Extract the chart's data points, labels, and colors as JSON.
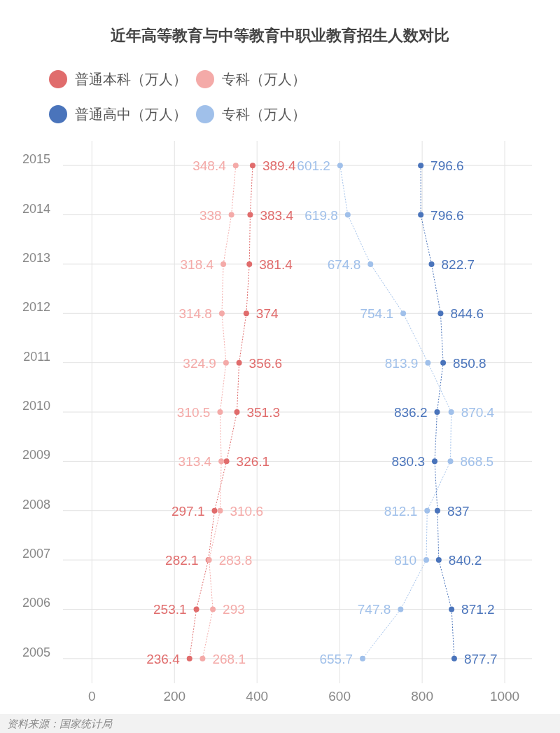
{
  "chart_data": {
    "type": "line",
    "orientation": "horizontal",
    "title": "近年高等教育与中等教育中职业教育招生人数对比",
    "categories": [
      "2015",
      "2014",
      "2013",
      "2012",
      "2011",
      "2010",
      "2009",
      "2008",
      "2007",
      "2006",
      "2005"
    ],
    "series": [
      {
        "name": "普通本科（万人）",
        "color": "#e06c6c",
        "values": [
          389.4,
          383.4,
          381.4,
          374,
          356.6,
          351.3,
          326.1,
          297.1,
          282.1,
          253.1,
          236.4
        ]
      },
      {
        "name": "专科（万人）",
        "color": "#f4aaa8",
        "values": [
          348.4,
          338,
          318.4,
          314.8,
          324.9,
          310.5,
          313.4,
          310.6,
          283.8,
          293,
          268.1
        ]
      },
      {
        "name": "普通高中（万人）",
        "color": "#4a74bb",
        "values": [
          796.6,
          796.6,
          822.7,
          844.6,
          850.8,
          836.2,
          830.3,
          837,
          840.2,
          871.2,
          877.7
        ]
      },
      {
        "name": "专科（万人）",
        "color": "#a0c0ea",
        "values": [
          601.2,
          619.8,
          674.8,
          754.1,
          813.9,
          870.4,
          868.5,
          812.1,
          810,
          747.8,
          655.7
        ]
      }
    ],
    "xlim": [
      -70,
      1066
    ],
    "xticks": [
      0,
      200,
      400,
      600,
      800,
      1000
    ],
    "grid": true,
    "legend": "top",
    "marker": "circle",
    "line_style": "dotted",
    "data_labels": true,
    "annotations": [
      "资料来源：国家统计局"
    ]
  }
}
